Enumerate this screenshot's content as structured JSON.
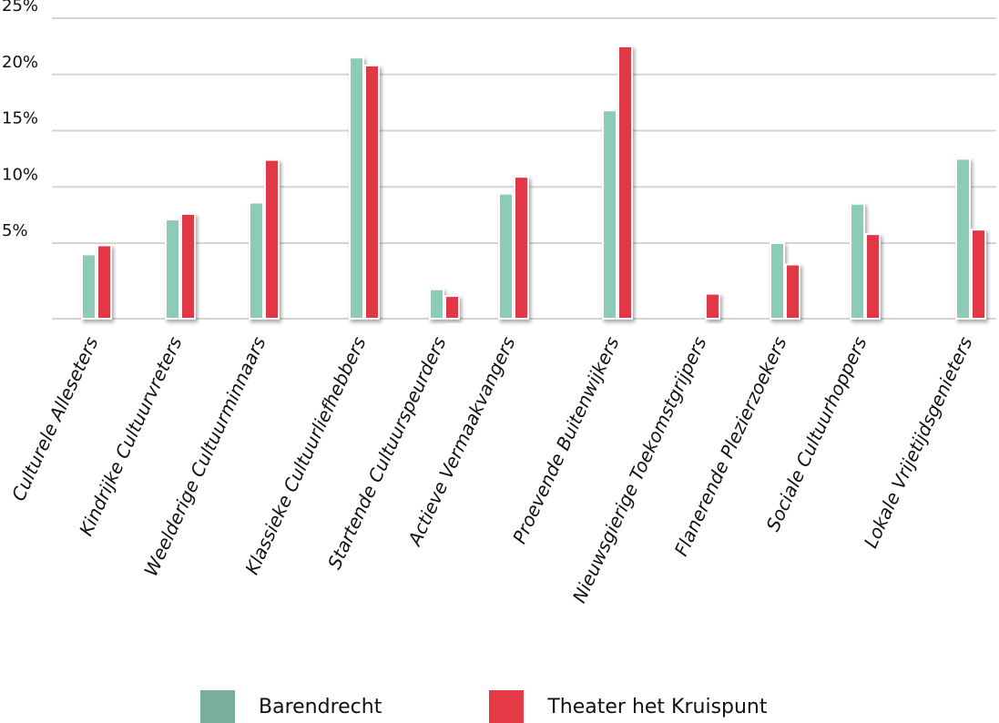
{
  "chart_data": {
    "type": "bar",
    "categories": [
      "Culturele Alleseters",
      "Kindrijke Cultuurvreters",
      "Weelderige Cultuurminnaars",
      "Klassieke Cultuurliefhebbers",
      "Startende Cultuurspeurders",
      "Actieve Vermaakvangers",
      "Proevende Buitenwijkers",
      "Nieuwsgierige Toekomstgrijpers",
      "Flanerende Plezierzoekers",
      "Sociale Cultuurhoppers",
      "Lokale Vrijetijdsgenieters"
    ],
    "series": [
      {
        "name": "Barendrecht",
        "color": "#8ccbb5",
        "values": [
          4.0,
          7.1,
          8.6,
          21.5,
          0.9,
          9.4,
          16.8,
          0.0,
          5.0,
          8.5,
          12.5
        ]
      },
      {
        "name": "Theater het Kruispunt",
        "color": "#e23844",
        "values": [
          4.8,
          7.6,
          12.4,
          20.8,
          0.3,
          10.9,
          22.5,
          0.5,
          3.1,
          5.8,
          6.2
        ]
      }
    ],
    "yticks": [
      "5%",
      "10%",
      "15%",
      "20%",
      "25%"
    ],
    "ytick_values": [
      5,
      10,
      15,
      20,
      25
    ],
    "ylim": [
      -2,
      25
    ],
    "grid": true,
    "legend_position": "bottom",
    "title": "",
    "xlabel": "",
    "ylabel": ""
  },
  "legend": {
    "items": [
      {
        "label": "Barendrecht",
        "color": "#78af9c"
      },
      {
        "label": "Theater het Kruispunt",
        "color": "#e53b47"
      }
    ]
  }
}
